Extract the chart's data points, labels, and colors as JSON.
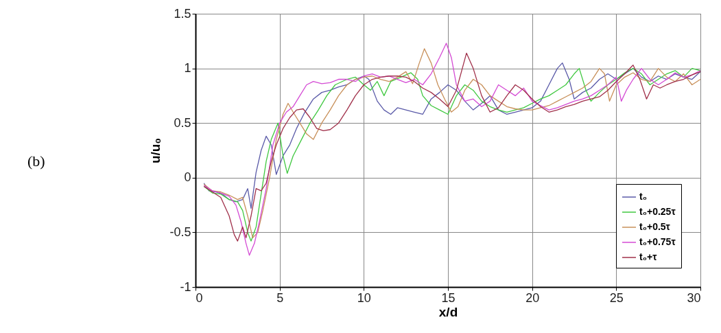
{
  "chart_data": {
    "type": "line",
    "xlabel": "x/d",
    "ylabel": "u/u₀",
    "annotations": [
      "(b)"
    ],
    "xlim": [
      0,
      30
    ],
    "ylim": [
      -1,
      1.5
    ],
    "xticks": [
      0,
      5,
      10,
      15,
      20,
      25,
      30
    ],
    "yticks": [
      -1,
      -0.5,
      0,
      0.5,
      1,
      1.5
    ],
    "grid": true,
    "legend": "bottom right",
    "marker": "none",
    "line_style": "solid",
    "series": [
      {
        "name": "t₀",
        "color": "#5a5aa8",
        "x": [
          0.5,
          0.8,
          1.2,
          1.6,
          2.0,
          2.4,
          2.8,
          3.1,
          3.3,
          3.6,
          3.9,
          4.2,
          4.5,
          4.8,
          5.2,
          5.6,
          6.0,
          6.5,
          7.0,
          7.5,
          8.0,
          8.5,
          9.0,
          9.5,
          10,
          10.3,
          10.8,
          11.2,
          11.6,
          12.0,
          12.5,
          13.0,
          13.5,
          14,
          14.5,
          15,
          15.5,
          16,
          16.5,
          17,
          17.5,
          18,
          18.5,
          19,
          19.5,
          20,
          20.5,
          21,
          21.5,
          21.8,
          22.2,
          22.5,
          23,
          23.5,
          24,
          24.5,
          25,
          25.5,
          26,
          26.5,
          27,
          27.5,
          28,
          28.5,
          29,
          29.5,
          30
        ],
        "values": [
          -0.05,
          -0.12,
          -0.13,
          -0.15,
          -0.2,
          -0.22,
          -0.2,
          -0.1,
          -0.28,
          0.05,
          0.25,
          0.38,
          0.3,
          0.03,
          0.2,
          0.3,
          0.45,
          0.6,
          0.72,
          0.78,
          0.8,
          0.83,
          0.85,
          0.9,
          0.93,
          0.9,
          0.7,
          0.62,
          0.58,
          0.64,
          0.62,
          0.6,
          0.58,
          0.72,
          0.78,
          0.85,
          0.8,
          0.7,
          0.62,
          0.68,
          0.75,
          0.62,
          0.58,
          0.6,
          0.62,
          0.64,
          0.7,
          0.85,
          1.0,
          1.05,
          0.9,
          0.72,
          0.78,
          0.82,
          0.9,
          0.95,
          0.9,
          0.95,
          1.0,
          0.92,
          0.88,
          0.93,
          0.9,
          0.95,
          0.92,
          0.9,
          0.97
        ]
      },
      {
        "name": "t₀+0.25τ",
        "color": "#40c840",
        "x": [
          0.5,
          1.0,
          1.5,
          2.0,
          2.5,
          2.8,
          3.1,
          3.3,
          3.6,
          3.9,
          4.2,
          4.5,
          4.9,
          5.2,
          5.45,
          5.8,
          6.3,
          6.8,
          7.3,
          7.8,
          8.3,
          9,
          9.5,
          10,
          10.4,
          10.8,
          11.2,
          11.6,
          12.2,
          12.8,
          13.2,
          13.5,
          14,
          14.5,
          15,
          15.5,
          16,
          16.5,
          17,
          17.5,
          18,
          18.5,
          19,
          19.5,
          20,
          20.5,
          21,
          21.5,
          22,
          22.5,
          22.8,
          23.2,
          23.5,
          24,
          24.5,
          25,
          25.5,
          26,
          26.5,
          27,
          27.5,
          28,
          28.5,
          29,
          29.5,
          30
        ],
        "values": [
          -0.08,
          -0.14,
          -0.15,
          -0.2,
          -0.22,
          -0.3,
          -0.5,
          -0.58,
          -0.45,
          -0.15,
          0.15,
          0.35,
          0.5,
          0.2,
          0.04,
          0.2,
          0.35,
          0.5,
          0.62,
          0.75,
          0.85,
          0.9,
          0.92,
          0.85,
          0.8,
          0.88,
          0.75,
          0.88,
          0.92,
          0.96,
          0.9,
          0.75,
          0.66,
          0.62,
          0.58,
          0.75,
          0.85,
          0.8,
          0.7,
          0.65,
          0.62,
          0.6,
          0.62,
          0.64,
          0.68,
          0.72,
          0.75,
          0.8,
          0.85,
          0.95,
          1.0,
          0.8,
          0.7,
          0.78,
          0.85,
          0.9,
          0.96,
          1.0,
          0.95,
          0.85,
          0.9,
          0.95,
          0.98,
          0.92,
          1.0,
          0.98
        ]
      },
      {
        "name": "t₀+0.5τ",
        "color": "#c8905a",
        "x": [
          0.5,
          1.0,
          1.5,
          2.0,
          2.5,
          2.8,
          3.1,
          3.4,
          3.7,
          4.0,
          4.4,
          4.8,
          5.2,
          5.5,
          5.8,
          6.2,
          6.6,
          7.0,
          7.5,
          8.0,
          8.5,
          9,
          9.5,
          10,
          10.5,
          11,
          11.5,
          12,
          12.5,
          12.9,
          13.3,
          13.6,
          14,
          14.4,
          14.8,
          15.2,
          15.6,
          16,
          16.5,
          17,
          17.5,
          18,
          18.5,
          19,
          19.5,
          20,
          20.5,
          21,
          21.5,
          22,
          22.5,
          23,
          23.5,
          24,
          24.3,
          24.6,
          25,
          25.5,
          26,
          26.5,
          27,
          27.5,
          28,
          28.5,
          29,
          29.5,
          30
        ],
        "values": [
          -0.06,
          -0.12,
          -0.13,
          -0.16,
          -0.2,
          -0.18,
          -0.35,
          -0.55,
          -0.5,
          -0.3,
          0.0,
          0.35,
          0.58,
          0.68,
          0.6,
          0.5,
          0.4,
          0.35,
          0.5,
          0.62,
          0.75,
          0.85,
          0.9,
          0.92,
          0.93,
          0.9,
          0.88,
          0.92,
          0.97,
          0.86,
          1.05,
          1.18,
          1.05,
          0.85,
          0.72,
          0.6,
          0.65,
          0.8,
          0.9,
          0.85,
          0.75,
          0.7,
          0.65,
          0.63,
          0.62,
          0.62,
          0.64,
          0.66,
          0.7,
          0.74,
          0.78,
          0.82,
          0.88,
          1.0,
          0.95,
          0.7,
          0.85,
          0.92,
          0.96,
          0.9,
          0.88,
          1.0,
          0.92,
          0.88,
          0.95,
          0.85,
          0.9
        ]
      },
      {
        "name": "t₀+0.75τ",
        "color": "#d44ad4",
        "x": [
          0.5,
          1.0,
          1.5,
          2.0,
          2.4,
          2.7,
          3.0,
          3.2,
          3.5,
          3.8,
          4.2,
          4.6,
          5.0,
          5.4,
          5.8,
          6.2,
          6.6,
          7.0,
          7.5,
          8,
          8.5,
          9,
          9.5,
          10,
          10.5,
          11,
          11.5,
          12,
          12.5,
          13,
          13.5,
          14,
          14.5,
          14.9,
          15.2,
          15.5,
          16,
          16.5,
          17,
          17.5,
          18,
          18.5,
          19,
          19.5,
          20,
          20.5,
          21,
          21.5,
          22,
          22.5,
          23,
          23.5,
          24,
          24.5,
          25,
          25.3,
          25.6,
          26,
          26.5,
          27,
          27.5,
          28,
          28.5,
          29,
          29.5,
          30
        ],
        "values": [
          -0.07,
          -0.12,
          -0.14,
          -0.17,
          -0.25,
          -0.4,
          -0.6,
          -0.71,
          -0.6,
          -0.4,
          -0.1,
          0.3,
          0.5,
          0.6,
          0.65,
          0.75,
          0.85,
          0.88,
          0.86,
          0.87,
          0.9,
          0.9,
          0.88,
          0.93,
          0.95,
          0.92,
          0.93,
          0.9,
          0.87,
          0.9,
          0.85,
          0.95,
          1.1,
          1.23,
          1.1,
          0.85,
          0.7,
          0.72,
          0.65,
          0.7,
          0.85,
          0.8,
          0.75,
          0.82,
          0.7,
          0.66,
          0.62,
          0.64,
          0.67,
          0.7,
          0.72,
          0.75,
          0.8,
          0.85,
          0.92,
          0.7,
          0.8,
          0.9,
          1.0,
          0.9,
          0.85,
          0.9,
          0.96,
          0.92,
          0.94,
          0.98
        ]
      },
      {
        "name": "t₀+τ",
        "color": "#a0304a",
        "x": [
          0.5,
          1.0,
          1.5,
          2.0,
          2.3,
          2.5,
          2.8,
          3.0,
          3.3,
          3.6,
          3.9,
          4.2,
          4.5,
          4.8,
          5.2,
          5.6,
          6.0,
          6.4,
          6.8,
          7.2,
          7.6,
          8,
          8.5,
          9,
          9.5,
          10,
          10.5,
          11,
          11.5,
          12,
          12.5,
          13,
          13.5,
          14,
          14.5,
          15,
          15.5,
          16.1,
          16.5,
          17,
          17.5,
          18,
          18.5,
          19,
          19.5,
          20,
          20.5,
          21,
          21.5,
          22,
          22.5,
          23,
          23.5,
          24,
          24.5,
          25,
          25.5,
          26,
          26.4,
          26.8,
          27.2,
          27.6,
          28,
          28.5,
          29,
          29.5,
          30
        ],
        "values": [
          -0.08,
          -0.13,
          -0.18,
          -0.35,
          -0.52,
          -0.58,
          -0.45,
          -0.55,
          -0.35,
          -0.1,
          -0.12,
          -0.05,
          0.15,
          0.3,
          0.45,
          0.55,
          0.62,
          0.63,
          0.55,
          0.45,
          0.43,
          0.44,
          0.5,
          0.62,
          0.75,
          0.85,
          0.9,
          0.92,
          0.93,
          0.93,
          0.92,
          0.88,
          0.82,
          0.78,
          0.72,
          0.65,
          0.8,
          1.14,
          1.0,
          0.75,
          0.6,
          0.64,
          0.75,
          0.85,
          0.8,
          0.72,
          0.65,
          0.6,
          0.62,
          0.65,
          0.67,
          0.7,
          0.72,
          0.74,
          0.8,
          0.88,
          0.95,
          1.03,
          0.9,
          0.72,
          0.85,
          0.82,
          0.85,
          0.88,
          0.9,
          0.94,
          0.97
        ]
      }
    ]
  }
}
